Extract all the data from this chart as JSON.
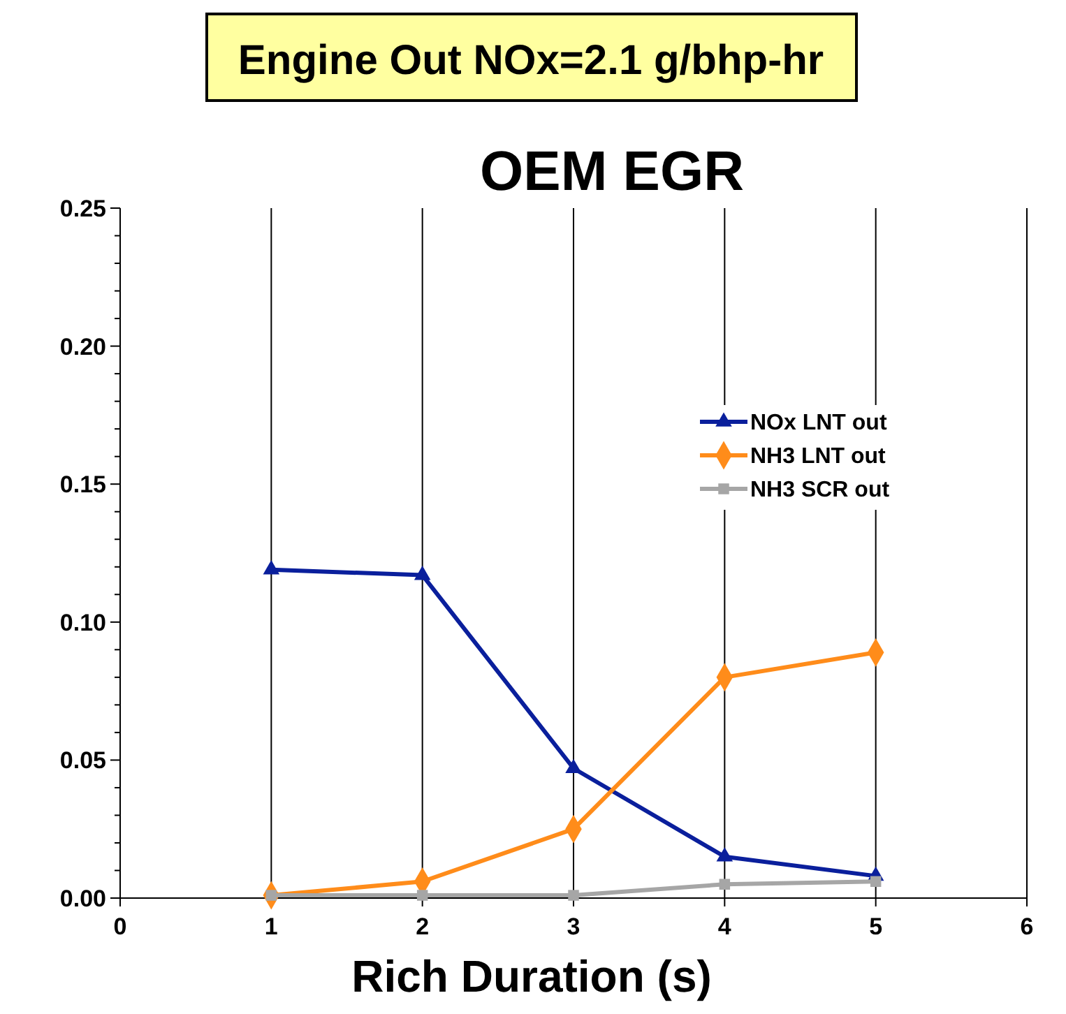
{
  "chart_data": {
    "type": "line",
    "title": "Engine Out NOx=2.1 g/bhp-hr",
    "subtitle": "OEM EGR",
    "xlabel": "Rich Duration (s)",
    "x": [
      1,
      2,
      3,
      4,
      5
    ],
    "series": [
      {
        "name": "NOx LNT out",
        "color": "#0a1f9c",
        "marker": "triangle",
        "values": [
          0.119,
          0.117,
          0.047,
          0.015,
          0.008
        ]
      },
      {
        "name": "NH3 LNT out",
        "color": "#ff8c1a",
        "marker": "diamond",
        "values": [
          0.001,
          0.006,
          0.025,
          0.08,
          0.089
        ]
      },
      {
        "name": "NH3 SCR out",
        "color": "#a6a6a6",
        "marker": "square",
        "values": [
          0.001,
          0.001,
          0.001,
          0.005,
          0.006
        ]
      }
    ],
    "xlim": [
      0,
      6
    ],
    "xticks": [
      0,
      1,
      2,
      3,
      4,
      5,
      6
    ],
    "ylim": [
      0,
      0.25
    ],
    "yticks": [
      {
        "value": 0,
        "label": "0.00"
      },
      {
        "value": 0.05,
        "label": "0.05"
      },
      {
        "value": 0.1,
        "label": "0.10"
      },
      {
        "value": 0.15,
        "label": "0.15"
      },
      {
        "value": 0.2,
        "label": "0.20"
      },
      {
        "value": 0.25,
        "label": "0.25"
      },
      {
        "value": 0.01,
        "label": null
      },
      {
        "value": 0.02,
        "label": null
      },
      {
        "value": 0.03,
        "label": null
      },
      {
        "value": 0.04,
        "label": null
      },
      {
        "value": 0.06,
        "label": null
      },
      {
        "value": 0.07,
        "label": null
      },
      {
        "value": 0.08,
        "label": null
      },
      {
        "value": 0.09,
        "label": null
      },
      {
        "value": 0.11,
        "label": null
      },
      {
        "value": 0.12,
        "label": null
      },
      {
        "value": 0.13,
        "label": null
      },
      {
        "value": 0.14,
        "label": null
      },
      {
        "value": 0.16,
        "label": null
      },
      {
        "value": 0.17,
        "label": null
      },
      {
        "value": 0.18,
        "label": null
      },
      {
        "value": 0.19,
        "label": null
      },
      {
        "value": 0.21,
        "label": null
      },
      {
        "value": 0.22,
        "label": null
      },
      {
        "value": 0.23,
        "label": null
      },
      {
        "value": 0.24,
        "label": null
      }
    ],
    "grid": "x",
    "legend": "right",
    "line_style": "solid"
  }
}
